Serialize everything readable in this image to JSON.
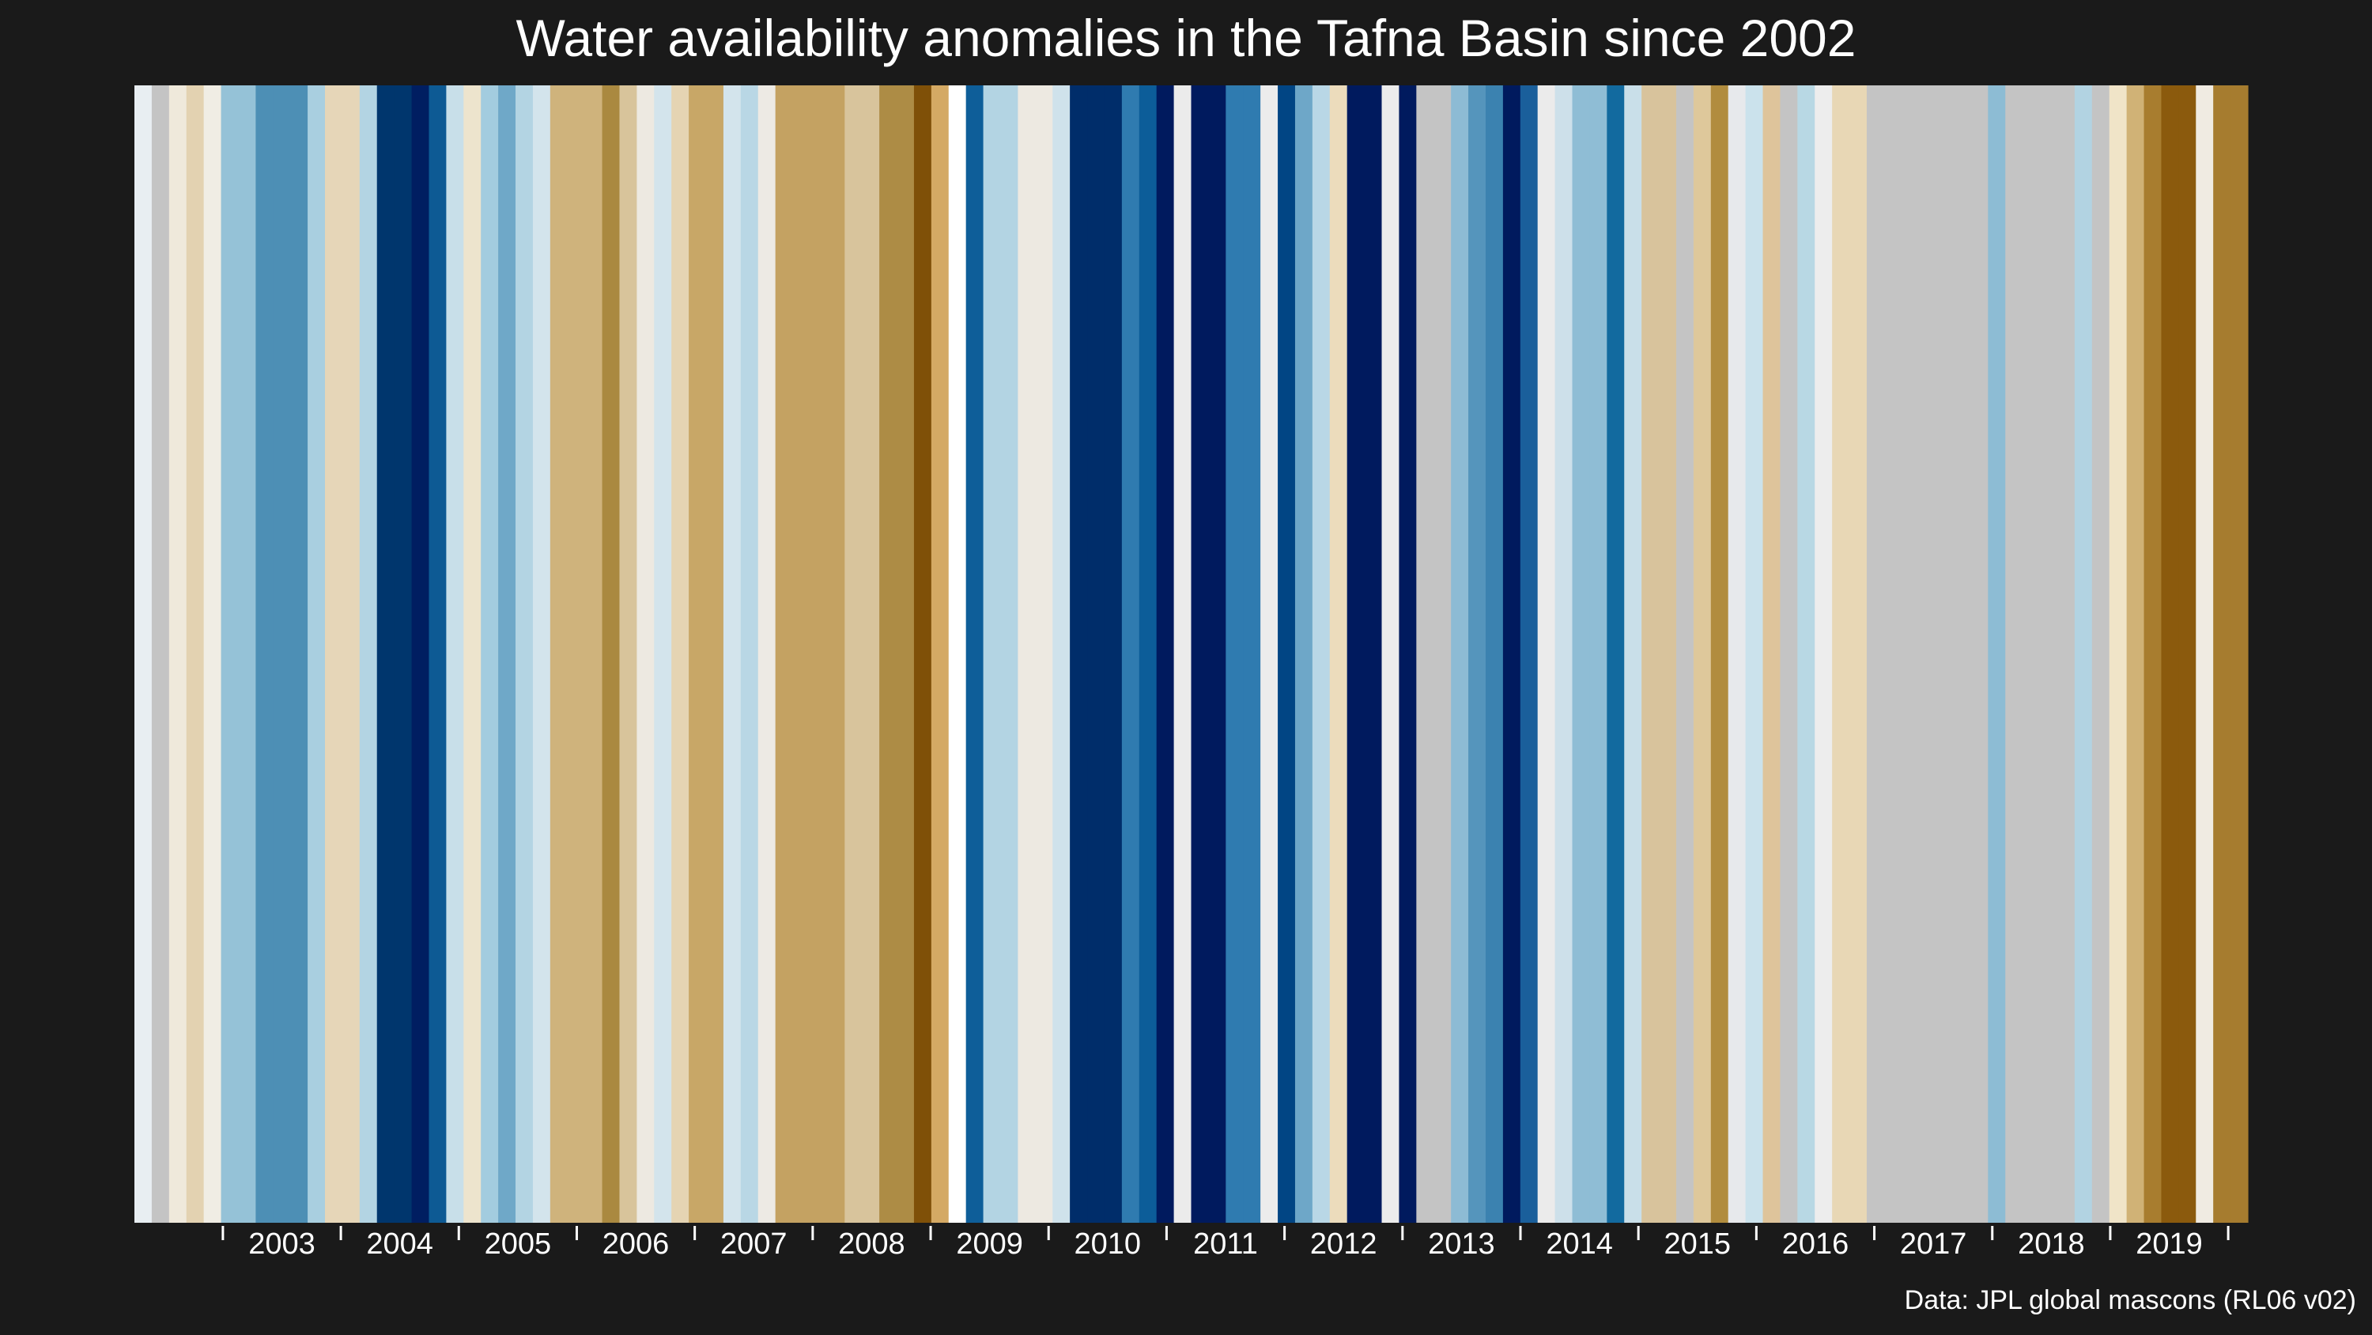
{
  "chart_data": {
    "type": "heatmap",
    "title": "Water availability anomalies in the Tafna Basin since 2002",
    "xlabel": "",
    "ylabel": "",
    "x_range": [
      "2002-04",
      "2020-03"
    ],
    "x_ticks": [
      "2003",
      "2004",
      "2005",
      "2006",
      "2007",
      "2008",
      "2009",
      "2010",
      "2011",
      "2012",
      "2013",
      "2014",
      "2015",
      "2016",
      "2017",
      "2018",
      "2019"
    ],
    "color_scale": "brown (dry) to dark blue (wet); grey = no data",
    "missing_color": "#c4c4c4",
    "grid": false,
    "legend": "none",
    "stripe_colors": [
      "#e8eef2",
      "#c4c4c4",
      "#efe9db",
      "#e3d2b1",
      "#f0ede4",
      "#95c2d7",
      "#95c2d7",
      "#4d8fb5",
      "#4d8fb5",
      "#4d8fb5",
      "#a9cfe0",
      "#e6d6b8",
      "#e6d6b8",
      "#b3d4e3",
      "#00366d",
      "#00366d",
      "#001e61",
      "#0d5a94",
      "#c8dfe9",
      "#ede4cd",
      "#a3ccdf",
      "#6fa8c8",
      "#b3d4e3",
      "#d3e4ec",
      "#cfb37c",
      "#cfb37c",
      "#cfb37c",
      "#aa8940",
      "#d8c49b",
      "#ede9e1",
      "#d3e4ec",
      "#e5d4b3",
      "#c8a767",
      "#c8a767",
      "#d3e4ec",
      "#b9d7e5",
      "#edeae4",
      "#c4a262",
      "#c4a262",
      "#c4a262",
      "#c4a262",
      "#d8c49c",
      "#d8c49c",
      "#ad8c45",
      "#ad8c45",
      "#7f5008",
      "#d4a964",
      "#ffffff",
      "#0e5e99",
      "#b3d4e3",
      "#b3d4e3",
      "#ede9e1",
      "#ede9e1",
      "#cfe2eb",
      "#002d6a",
      "#002d6a",
      "#002d6a",
      "#2f7bb0",
      "#0c5d99",
      "#001a5e",
      "#ebebeb",
      "#001a5e",
      "#001a5e",
      "#2f7bb0",
      "#2f7bb0",
      "#ececec",
      "#014584",
      "#6ea7c8",
      "#b9d7e6",
      "#ecdcbc",
      "#001a5e",
      "#001a5e",
      "#ececec",
      "#001a5e",
      "#c4c4c4",
      "#c4c4c4",
      "#8dbbd4",
      "#5595bc",
      "#3b82b0",
      "#001a5e",
      "#1a5f9b",
      "#ebebeb",
      "#cde0ea",
      "#8fbdd5",
      "#8fbdd5",
      "#126a9f",
      "#c9dfe9",
      "#d8c39c",
      "#d8c39c",
      "#c4c4c4",
      "#dec89b",
      "#b18c3e",
      "#e7e9ec",
      "#cbe2ec",
      "#dec49b",
      "#c4c4c4",
      "#b8d8e4",
      "#ededed",
      "#e8d7b5",
      "#e8d7b5",
      "#c4c4c4",
      "#c4c4c4",
      "#c4c4c4",
      "#c4c4c4",
      "#c4c4c4",
      "#c4c4c4",
      "#c4c4c4",
      "#8dbcd4",
      "#c4c4c4",
      "#c4c4c4",
      "#c4c4c4",
      "#c4c4c4",
      "#b2d3e2",
      "#c4c4c4",
      "#f0e4c8",
      "#d0b276",
      "#a87d2f",
      "#8b5a0d",
      "#8b5a0d",
      "#f0ebe2",
      "#a67c2f",
      "#a67c2f"
    ]
  },
  "caption": "Data: JPL global mascons (RL06 v02)"
}
